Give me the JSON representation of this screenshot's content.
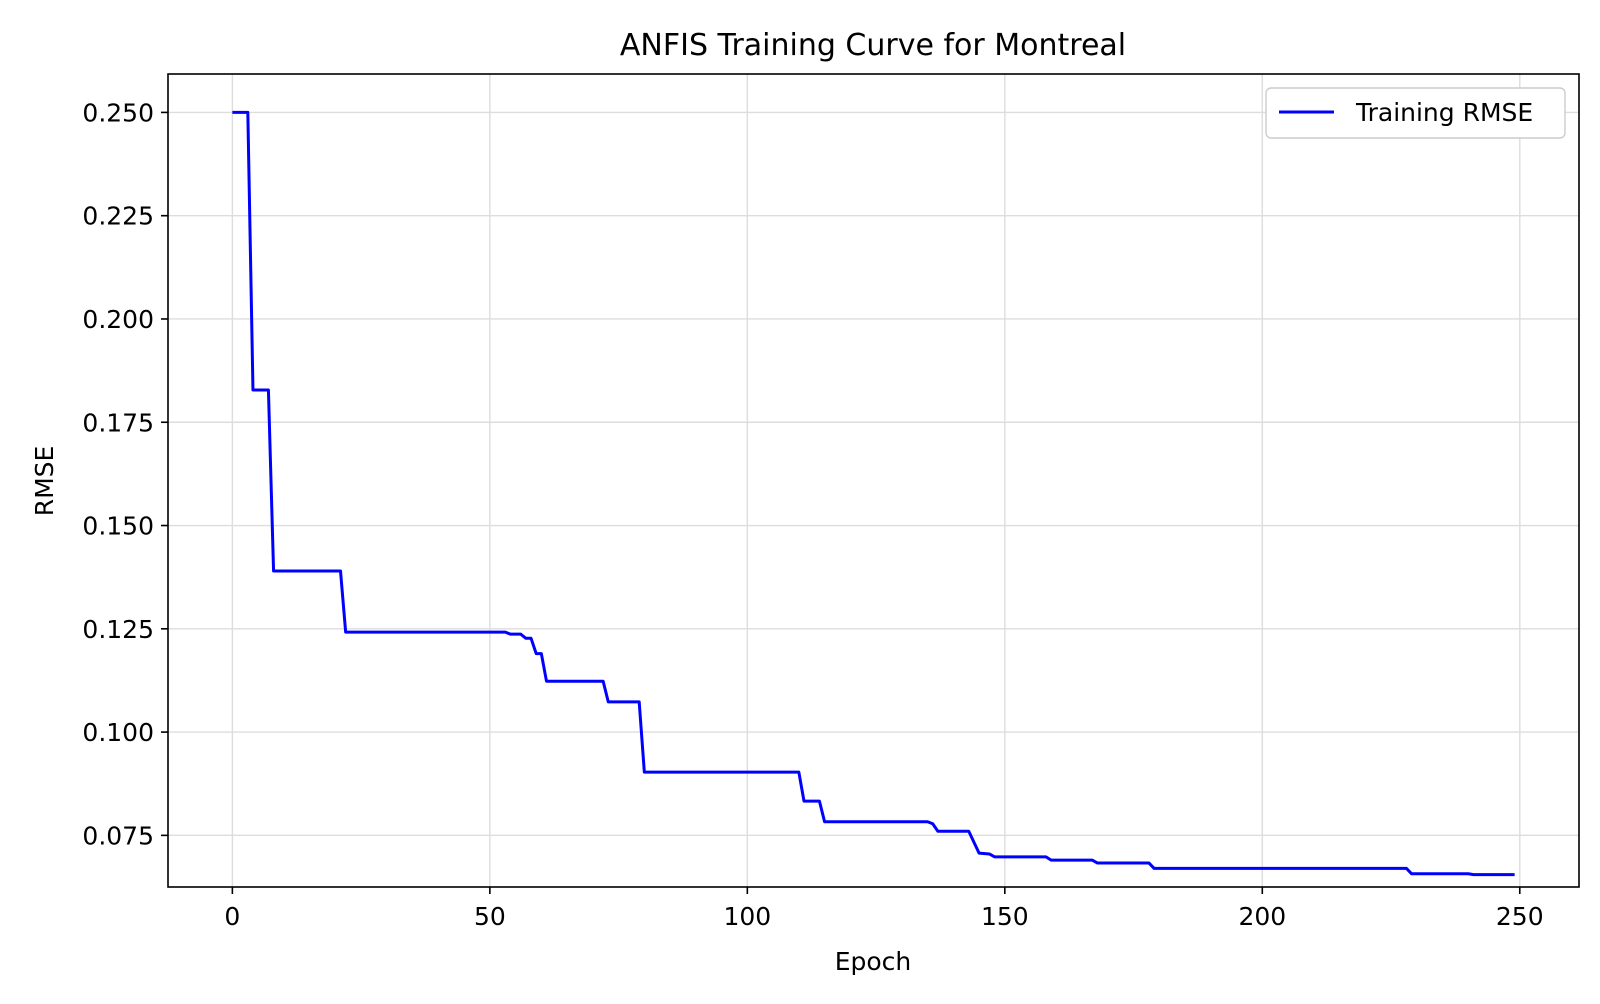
{
  "chart_data": {
    "type": "line",
    "title": "ANFIS Training Curve for Montreal",
    "xlabel": "Epoch",
    "ylabel": "RMSE",
    "xlim": [
      -12.5,
      261.5
    ],
    "ylim": [
      0.0625,
      0.2593
    ],
    "xticks": [
      0,
      50,
      100,
      150,
      200,
      250
    ],
    "xtick_labels": [
      "0",
      "50",
      "100",
      "150",
      "200",
      "250"
    ],
    "yticks": [
      0.075,
      0.1,
      0.125,
      0.15,
      0.175,
      0.2,
      0.225,
      0.25
    ],
    "ytick_labels": [
      "0.075",
      "0.100",
      "0.125",
      "0.150",
      "0.175",
      "0.200",
      "0.225",
      "0.250"
    ],
    "grid": true,
    "legend": {
      "position": "top-right",
      "entries": [
        "Training RMSE"
      ]
    },
    "series": [
      {
        "name": "Training RMSE",
        "color": "#0000ff",
        "points": [
          [
            0,
            0.25
          ],
          [
            3,
            0.25
          ],
          [
            4,
            0.1828
          ],
          [
            7,
            0.1828
          ],
          [
            8,
            0.139
          ],
          [
            21,
            0.139
          ],
          [
            22,
            0.1242
          ],
          [
            53,
            0.1242
          ],
          [
            54,
            0.1237
          ],
          [
            56,
            0.1237
          ],
          [
            57,
            0.1227
          ],
          [
            58,
            0.1227
          ],
          [
            59,
            0.119
          ],
          [
            60,
            0.119
          ],
          [
            61,
            0.1123
          ],
          [
            72,
            0.1123
          ],
          [
            73,
            0.1073
          ],
          [
            79,
            0.1073
          ],
          [
            80,
            0.0903
          ],
          [
            110,
            0.0903
          ],
          [
            111,
            0.0833
          ],
          [
            114,
            0.0833
          ],
          [
            115,
            0.0783
          ],
          [
            135,
            0.0783
          ],
          [
            136,
            0.0778
          ],
          [
            137,
            0.076
          ],
          [
            143,
            0.076
          ],
          [
            145,
            0.0707
          ],
          [
            147,
            0.0705
          ],
          [
            148,
            0.0698
          ],
          [
            158,
            0.0698
          ],
          [
            159,
            0.069
          ],
          [
            167,
            0.069
          ],
          [
            168,
            0.0683
          ],
          [
            178,
            0.0683
          ],
          [
            179,
            0.067
          ],
          [
            228,
            0.067
          ],
          [
            229,
            0.0657
          ],
          [
            240,
            0.0657
          ],
          [
            241,
            0.0655
          ],
          [
            249,
            0.0655
          ]
        ]
      }
    ]
  }
}
